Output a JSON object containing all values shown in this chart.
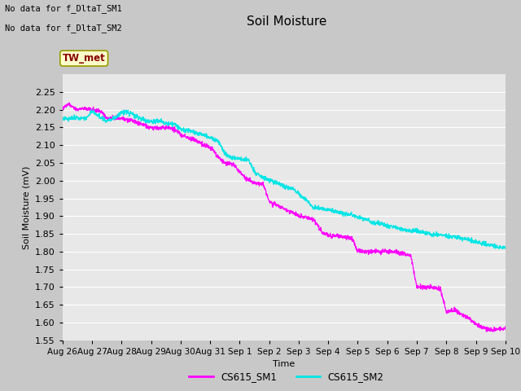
{
  "title": "Soil Moisture",
  "ylabel": "Soil Moisture (mV)",
  "xlabel": "Time",
  "fig_facecolor": "#d0d0d0",
  "plot_bg_color": "#e8e8e8",
  "ylim": [
    1.55,
    2.3
  ],
  "yticks": [
    1.55,
    1.6,
    1.65,
    1.7,
    1.75,
    1.8,
    1.85,
    1.9,
    1.95,
    2.0,
    2.05,
    2.1,
    2.15,
    2.2,
    2.25
  ],
  "line1_color": "#ff00ff",
  "line2_color": "#00e5e5",
  "line1_label": "CS615_SM1",
  "line2_label": "CS615_SM2",
  "legend_box_color": "#ffffcc",
  "legend_box_text": "TW_met",
  "legend_box_border": "#999900",
  "note_line1": "No data for f_DltaT_SM1",
  "note_line2": "No data for f_DltaT_SM2",
  "xtick_labels": [
    "Aug 26",
    "Aug 27",
    "Aug 28",
    "Aug 29",
    "Aug 30",
    "Aug 31",
    "Sep 1",
    "Sep 2",
    "Sep 3",
    "Sep 4",
    "Sep 5",
    "Sep 6",
    "Sep 7",
    "Sep 8",
    "Sep 9",
    "Sep 10"
  ],
  "xtick_positions": [
    0,
    1,
    2,
    3,
    4,
    5,
    6,
    7,
    8,
    9,
    10,
    11,
    12,
    13,
    14,
    15
  ],
  "sm1_keypoints": [
    [
      0,
      2.205
    ],
    [
      0.2,
      2.215
    ],
    [
      0.5,
      2.2
    ],
    [
      0.7,
      2.205
    ],
    [
      1.0,
      2.2
    ],
    [
      1.3,
      2.195
    ],
    [
      1.5,
      2.175
    ],
    [
      1.8,
      2.178
    ],
    [
      2.0,
      2.175
    ],
    [
      2.3,
      2.17
    ],
    [
      2.5,
      2.165
    ],
    [
      2.8,
      2.155
    ],
    [
      3.0,
      2.15
    ],
    [
      3.3,
      2.148
    ],
    [
      3.5,
      2.15
    ],
    [
      3.8,
      2.145
    ],
    [
      4.0,
      2.13
    ],
    [
      4.3,
      2.12
    ],
    [
      4.5,
      2.115
    ],
    [
      4.8,
      2.1
    ],
    [
      5.0,
      2.095
    ],
    [
      5.3,
      2.065
    ],
    [
      5.5,
      2.05
    ],
    [
      5.8,
      2.045
    ],
    [
      6.0,
      2.025
    ],
    [
      6.3,
      2.0
    ],
    [
      6.5,
      1.995
    ],
    [
      6.8,
      1.99
    ],
    [
      7.0,
      1.94
    ],
    [
      7.3,
      1.93
    ],
    [
      7.5,
      1.92
    ],
    [
      7.8,
      1.91
    ],
    [
      8.0,
      1.9
    ],
    [
      8.3,
      1.895
    ],
    [
      8.5,
      1.89
    ],
    [
      8.8,
      1.855
    ],
    [
      9.0,
      1.845
    ],
    [
      9.3,
      1.845
    ],
    [
      9.5,
      1.84
    ],
    [
      9.8,
      1.84
    ],
    [
      10.0,
      1.8
    ],
    [
      10.3,
      1.8
    ],
    [
      10.5,
      1.8
    ],
    [
      10.8,
      1.8
    ],
    [
      11.0,
      1.8
    ],
    [
      11.3,
      1.8
    ],
    [
      11.5,
      1.795
    ],
    [
      11.8,
      1.79
    ],
    [
      12.0,
      1.7
    ],
    [
      12.3,
      1.7
    ],
    [
      12.5,
      1.7
    ],
    [
      12.8,
      1.695
    ],
    [
      13.0,
      1.63
    ],
    [
      13.3,
      1.635
    ],
    [
      13.5,
      1.625
    ],
    [
      13.8,
      1.61
    ],
    [
      14.0,
      1.595
    ],
    [
      14.3,
      1.585
    ],
    [
      14.5,
      1.58
    ],
    [
      14.8,
      1.582
    ],
    [
      15.0,
      1.582
    ]
  ],
  "sm2_keypoints": [
    [
      0,
      2.175
    ],
    [
      0.2,
      2.175
    ],
    [
      0.5,
      2.178
    ],
    [
      0.8,
      2.175
    ],
    [
      1.0,
      2.195
    ],
    [
      1.3,
      2.178
    ],
    [
      1.5,
      2.168
    ],
    [
      1.8,
      2.178
    ],
    [
      2.0,
      2.195
    ],
    [
      2.3,
      2.19
    ],
    [
      2.5,
      2.18
    ],
    [
      2.8,
      2.17
    ],
    [
      3.0,
      2.168
    ],
    [
      3.3,
      2.168
    ],
    [
      3.5,
      2.162
    ],
    [
      3.8,
      2.158
    ],
    [
      4.0,
      2.145
    ],
    [
      4.3,
      2.14
    ],
    [
      4.5,
      2.135
    ],
    [
      4.8,
      2.128
    ],
    [
      5.0,
      2.122
    ],
    [
      5.3,
      2.11
    ],
    [
      5.5,
      2.075
    ],
    [
      5.8,
      2.062
    ],
    [
      6.0,
      2.062
    ],
    [
      6.3,
      2.058
    ],
    [
      6.5,
      2.025
    ],
    [
      6.8,
      2.008
    ],
    [
      7.0,
      2.002
    ],
    [
      7.3,
      1.992
    ],
    [
      7.5,
      1.982
    ],
    [
      7.8,
      1.978
    ],
    [
      8.0,
      1.962
    ],
    [
      8.3,
      1.942
    ],
    [
      8.5,
      1.922
    ],
    [
      8.8,
      1.922
    ],
    [
      9.0,
      1.918
    ],
    [
      9.3,
      1.912
    ],
    [
      9.5,
      1.908
    ],
    [
      9.8,
      1.902
    ],
    [
      10.0,
      1.898
    ],
    [
      10.3,
      1.892
    ],
    [
      10.5,
      1.882
    ],
    [
      10.8,
      1.878
    ],
    [
      11.0,
      1.872
    ],
    [
      11.3,
      1.868
    ],
    [
      11.5,
      1.862
    ],
    [
      11.8,
      1.858
    ],
    [
      12.0,
      1.858
    ],
    [
      12.3,
      1.852
    ],
    [
      12.5,
      1.848
    ],
    [
      12.8,
      1.848
    ],
    [
      13.0,
      1.842
    ],
    [
      13.3,
      1.842
    ],
    [
      13.5,
      1.838
    ],
    [
      13.8,
      1.832
    ],
    [
      14.0,
      1.828
    ],
    [
      14.3,
      1.822
    ],
    [
      14.5,
      1.818
    ],
    [
      14.8,
      1.812
    ],
    [
      15.0,
      1.812
    ]
  ]
}
